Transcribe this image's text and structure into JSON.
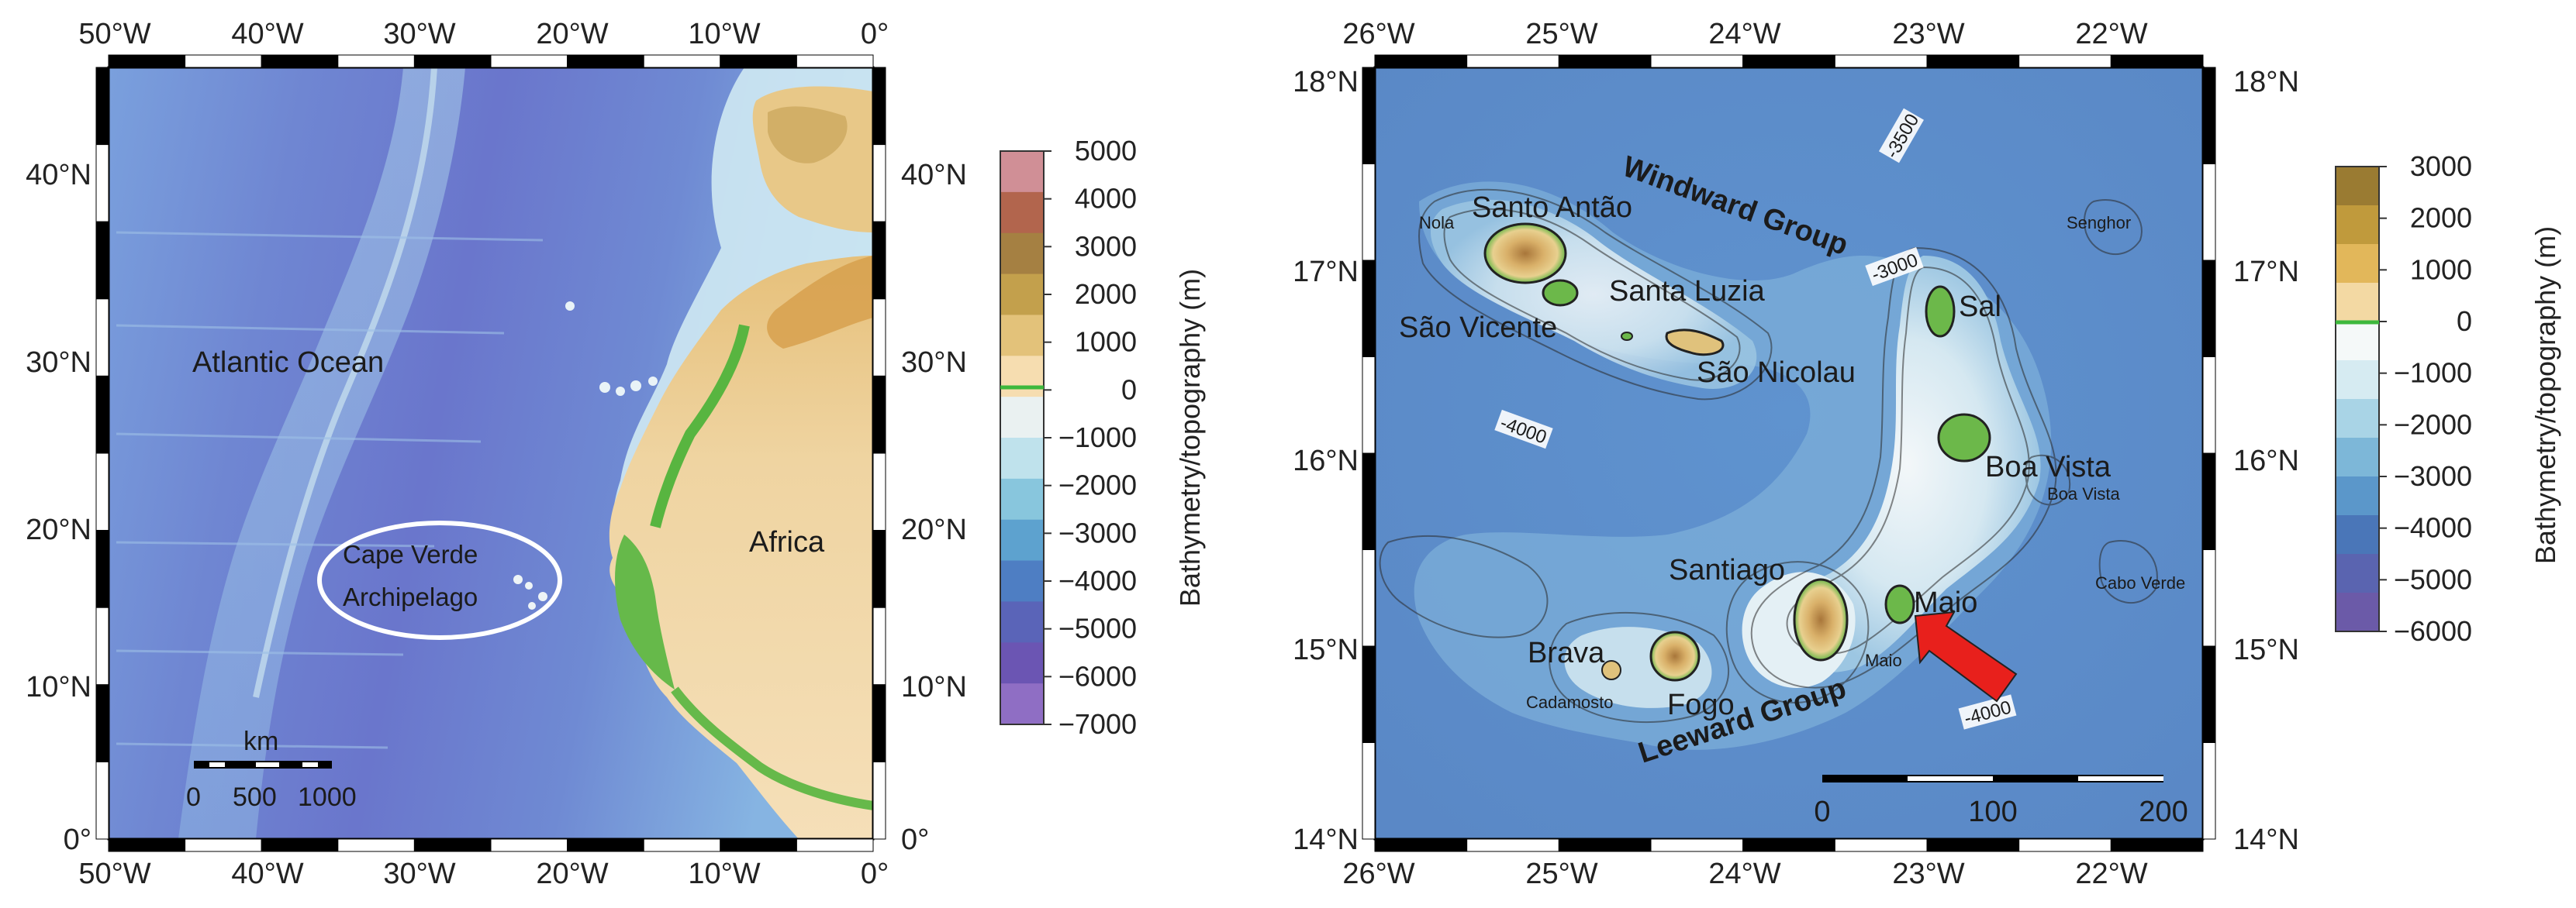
{
  "left_map": {
    "lon_ticks": [
      "50°W",
      "40°W",
      "30°W",
      "20°W",
      "10°W",
      "0°"
    ],
    "lat_ticks_left": [
      "0°",
      "10°N",
      "20°N",
      "30°N",
      "40°N"
    ],
    "lat_ticks_right": [
      "0°",
      "10°N",
      "20°N",
      "30°N",
      "40°N"
    ],
    "labels": {
      "ocean": "Atlantic Ocean",
      "continent": "Africa",
      "archipelago_line1": "Cape Verde",
      "archipelago_line2": "Archipelago"
    },
    "scale_bar": {
      "unit": "km",
      "ticks": [
        "0",
        "500",
        "1000"
      ]
    },
    "colorbar": {
      "title": "Bathymetry/topography (m)",
      "ticks": [
        "5000",
        "4000",
        "3000",
        "2000",
        "1000",
        "0",
        "−1000",
        "−2000",
        "−3000",
        "−4000",
        "−5000",
        "−6000",
        "−7000"
      ],
      "colors": [
        "#d08f96",
        "#b2654d",
        "#a58042",
        "#c3a04c",
        "#e3c27a",
        "#f6ddb0",
        "#eaf1f1",
        "#bfe2ec",
        "#88c6dd",
        "#5da2cf",
        "#4e7ec3",
        "#5a64b8",
        "#6b55b3",
        "#8f6ec4"
      ],
      "zero_line_color": "#3db83d"
    }
  },
  "right_map": {
    "lon_ticks": [
      "26°W",
      "25°W",
      "24°W",
      "23°W",
      "22°W"
    ],
    "lat_ticks_left": [
      "14°N",
      "15°N",
      "16°N",
      "17°N",
      "18°N"
    ],
    "lat_ticks_right": [
      "14°N",
      "15°N",
      "16°N",
      "17°N",
      "18°N"
    ],
    "islands": {
      "santo_antao": "Santo Antão",
      "sao_vicente": "São Vicente",
      "santa_luzia": "Santa Luzia",
      "sao_nicolau": "São Nicolau",
      "sal": "Sal",
      "boa_vista": "Boa Vista",
      "santiago": "Santiago",
      "maio": "Maio",
      "brava": "Brava",
      "fogo": "Fogo"
    },
    "groups": {
      "windward": "Windward Group",
      "leeward": "Leeward Group"
    },
    "seamounts": {
      "nola": "Nola",
      "senghor": "Senghor",
      "boa_vista_smt": "Boa Vista",
      "cabo_verde": "Cabo Verde",
      "maio_smt": "Maio",
      "cadamosto": "Cadamosto"
    },
    "contours": {
      "c1": "-3500",
      "c2": "-3000",
      "c3": "-4000",
      "c4": "-4000"
    },
    "scale_bar": {
      "ticks": [
        "0",
        "100",
        "200"
      ]
    },
    "colorbar": {
      "title": "Bathymetry/topography (m)",
      "ticks": [
        "3000",
        "2000",
        "1000",
        "0",
        "−1000",
        "−2000",
        "−3000",
        "−4000",
        "−5000",
        "−6000"
      ],
      "colors": [
        "#9a7b32",
        "#c09a3c",
        "#e2b75a",
        "#f3d9a3",
        "#f5f9f9",
        "#d6ebf2",
        "#a9d4e6",
        "#7db7d8",
        "#5b97ca",
        "#4a76b8",
        "#5a64b0",
        "#6b5aa8"
      ],
      "zero_line_color": "#3db83d"
    },
    "arrow_color": "#e8201c"
  }
}
